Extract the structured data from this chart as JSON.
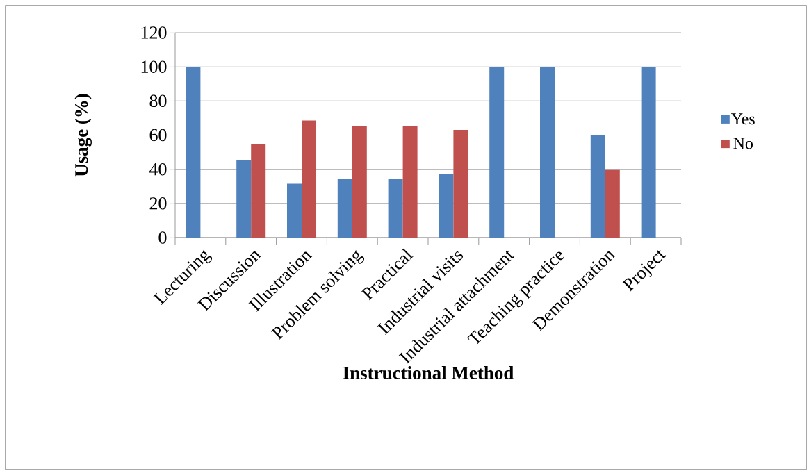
{
  "chart_data": {
    "type": "bar",
    "xlabel": "Instructional Method",
    "ylabel": "Usage (%)",
    "categories": [
      "Lecturing",
      "Discussion",
      "Illustration",
      "Problem solving",
      "Practical",
      "Industrial visits",
      "Industrial attachment",
      "Teaching practice",
      "Demonstration",
      "Project"
    ],
    "series": [
      {
        "name": "Yes",
        "color": "#4f81bd",
        "values": [
          100,
          45.5,
          31.5,
          34.5,
          34.5,
          37,
          100,
          100,
          60,
          100
        ]
      },
      {
        "name": "No",
        "color": "#c0504d",
        "values": [
          0,
          54.5,
          68.5,
          65.5,
          65.5,
          63,
          0,
          0,
          40,
          0
        ]
      }
    ],
    "ylim": [
      0,
      120
    ],
    "yticks": [
      0,
      20,
      40,
      60,
      80,
      100,
      120
    ],
    "grid": "y",
    "legend": "right"
  }
}
